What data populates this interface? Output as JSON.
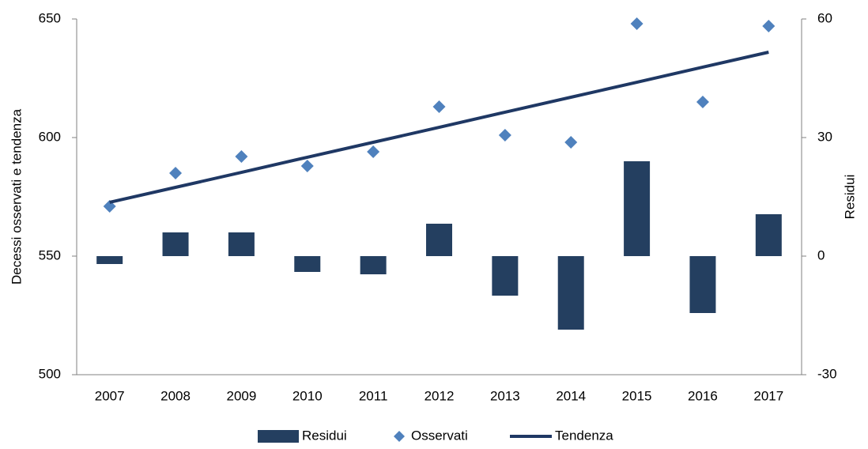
{
  "chart_data": {
    "type": "combo",
    "categories": [
      "2007",
      "2008",
      "2009",
      "2010",
      "2011",
      "2012",
      "2013",
      "2014",
      "2015",
      "2016",
      "2017"
    ],
    "ylabel": "Decessi osservati e tendenza",
    "y2label": "Residui",
    "ylim": [
      500,
      650
    ],
    "yticks": [
      500,
      550,
      600,
      650
    ],
    "y2lim": [
      -30,
      60
    ],
    "y2ticks": [
      -30,
      0,
      30,
      60
    ],
    "series": [
      {
        "name": "Residui",
        "type": "bar",
        "axis": "y2",
        "color": "#243f60",
        "values": [
          -2,
          6,
          6,
          -4,
          -4.6,
          8.2,
          -10,
          -18.6,
          24,
          -14.4,
          10.6
        ]
      },
      {
        "name": "Osservati",
        "type": "scatter",
        "color": "#4f81bd",
        "values": [
          571,
          585,
          592,
          588,
          594,
          613,
          601,
          598,
          648,
          615,
          647
        ]
      },
      {
        "name": "Tendenza",
        "type": "line",
        "color": "#1f3864",
        "values": [
          572.7,
          579,
          585.3,
          591.7,
          598,
          604.3,
          610.7,
          617,
          623.3,
          629.7,
          636
        ]
      }
    ]
  }
}
